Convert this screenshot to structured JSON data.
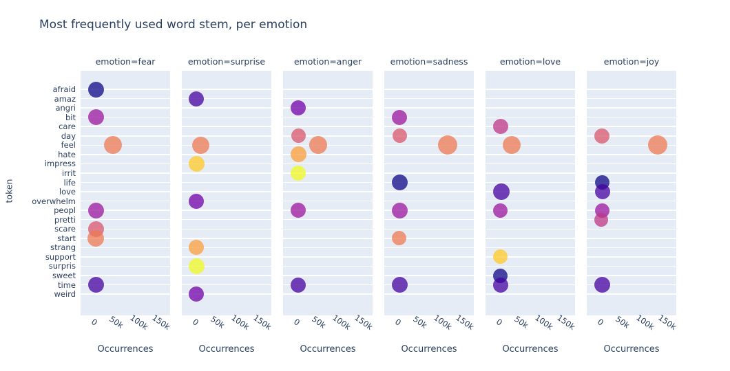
{
  "chart_data": {
    "type": "scatter",
    "title": "Most frequently used word stem, per emotion",
    "xlabel": "Occurrences",
    "ylabel": "token",
    "legend": "none",
    "grid": "horizontal-white-on-light-panel",
    "plot_bgcolor": "#e5ecf6",
    "grid_color": "#ffffff",
    "text_color": "#2a3f5f",
    "marker_opacity": 0.75,
    "x_range": [
      -30000,
      170000
    ],
    "x_ticks": [
      0,
      50000,
      100000,
      150000
    ],
    "x_tick_labels": [
      "0",
      "50k",
      "100k",
      "150k"
    ],
    "tokens": [
      "afraid",
      "amaz",
      "angri",
      "bit",
      "care",
      "day",
      "feel",
      "hate",
      "impress",
      "irrit",
      "life",
      "love",
      "overwhelm",
      "peopl",
      "pretti",
      "scare",
      "start",
      "strang",
      "support",
      "surpris",
      "sweet",
      "time",
      "weird"
    ],
    "token_colors": {
      "afraid": "#0d0887",
      "amaz": "#46039f",
      "angri": "#7201a8",
      "bit": "#9c179e",
      "care": "#bd3786",
      "day": "#d8576b",
      "feel": "#ed7953",
      "hate": "#fb9f3a",
      "impress": "#fdca26",
      "irrit": "#f0f921",
      "life": "#0d0887",
      "love": "#46039f",
      "overwhelm": "#7201a8",
      "peopl": "#9c179e",
      "pretti": "#bd3786",
      "scare": "#d8576b",
      "start": "#ed7953",
      "strang": "#fb9f3a",
      "support": "#fdca26",
      "surpris": "#f0f921",
      "sweet": "#0d0887",
      "time": "#46039f",
      "weird": "#7201a8"
    },
    "facets": [
      {
        "emotion": "fear",
        "title": "emotion=fear",
        "points": [
          {
            "token": "afraid",
            "value": 5000,
            "size": 23
          },
          {
            "token": "bit",
            "value": 4000,
            "size": 23
          },
          {
            "token": "feel",
            "value": 43000,
            "size": 26
          },
          {
            "token": "peopl",
            "value": 4000,
            "size": 23
          },
          {
            "token": "scare",
            "value": 5000,
            "size": 23
          },
          {
            "token": "start",
            "value": 4000,
            "size": 24
          },
          {
            "token": "time",
            "value": 5000,
            "size": 23
          }
        ]
      },
      {
        "emotion": "surprise",
        "title": "emotion=surprise",
        "points": [
          {
            "token": "amaz",
            "value": 3000,
            "size": 22
          },
          {
            "token": "feel",
            "value": 13000,
            "size": 25
          },
          {
            "token": "impress",
            "value": 3000,
            "size": 23
          },
          {
            "token": "overwhelm",
            "value": 2000,
            "size": 22
          },
          {
            "token": "strang",
            "value": 2500,
            "size": 22
          },
          {
            "token": "surpris",
            "value": 3000,
            "size": 23
          },
          {
            "token": "weird",
            "value": 2000,
            "size": 22
          }
        ]
      },
      {
        "emotion": "anger",
        "title": "emotion=anger",
        "points": [
          {
            "token": "angri",
            "value": 4000,
            "size": 22
          },
          {
            "token": "day",
            "value": 4000,
            "size": 21
          },
          {
            "token": "feel",
            "value": 49000,
            "size": 26
          },
          {
            "token": "hate",
            "value": 5000,
            "size": 23
          },
          {
            "token": "irrit",
            "value": 4000,
            "size": 22
          },
          {
            "token": "peopl",
            "value": 4000,
            "size": 22
          },
          {
            "token": "time",
            "value": 4000,
            "size": 22
          }
        ]
      },
      {
        "emotion": "sadness",
        "title": "emotion=sadness",
        "points": [
          {
            "token": "bit",
            "value": 4000,
            "size": 22
          },
          {
            "token": "day",
            "value": 4000,
            "size": 21
          },
          {
            "token": "feel",
            "value": 112000,
            "size": 28
          },
          {
            "token": "life",
            "value": 5000,
            "size": 23
          },
          {
            "token": "peopl",
            "value": 4000,
            "size": 23
          },
          {
            "token": "start",
            "value": 3000,
            "size": 21
          },
          {
            "token": "time",
            "value": 5000,
            "size": 23
          }
        ]
      },
      {
        "emotion": "love",
        "title": "emotion=love",
        "points": [
          {
            "token": "care",
            "value": 3500,
            "size": 22
          },
          {
            "token": "feel",
            "value": 29000,
            "size": 26
          },
          {
            "token": "love",
            "value": 5000,
            "size": 24
          },
          {
            "token": "peopl",
            "value": 3000,
            "size": 21
          },
          {
            "token": "support",
            "value": 2500,
            "size": 21
          },
          {
            "token": "sweet",
            "value": 3500,
            "size": 21
          },
          {
            "token": "time",
            "value": 3500,
            "size": 22
          }
        ]
      },
      {
        "emotion": "joy",
        "title": "emotion=joy",
        "points": [
          {
            "token": "day",
            "value": 4000,
            "size": 22
          },
          {
            "token": "feel",
            "value": 128000,
            "size": 28
          },
          {
            "token": "life",
            "value": 4000,
            "size": 21
          },
          {
            "token": "love",
            "value": 5000,
            "size": 22
          },
          {
            "token": "peopl",
            "value": 4000,
            "size": 21
          },
          {
            "token": "pretti",
            "value": 3000,
            "size": 20
          },
          {
            "token": "time",
            "value": 5000,
            "size": 23
          }
        ]
      }
    ]
  }
}
